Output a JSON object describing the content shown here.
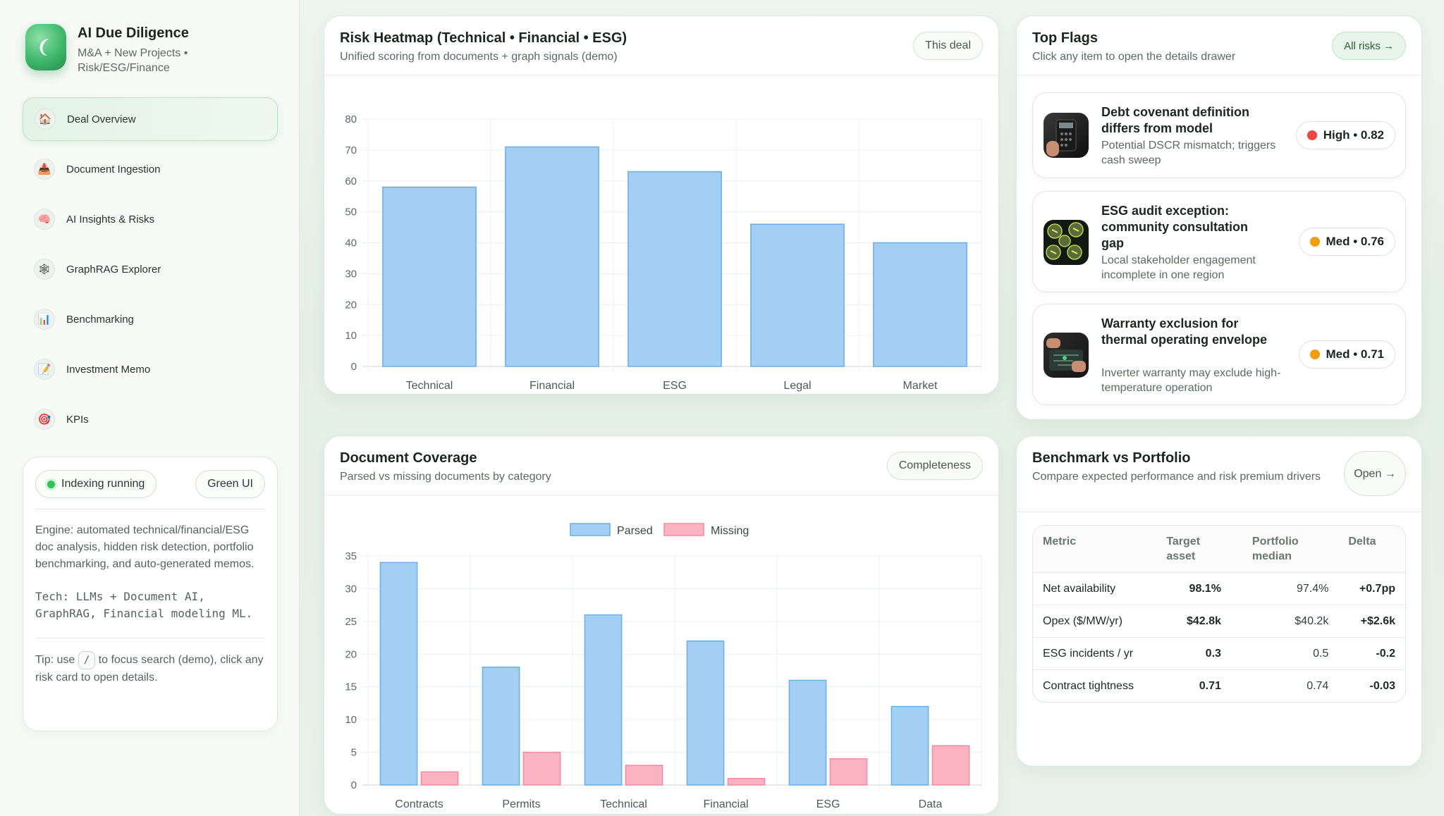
{
  "brand": {
    "title": "AI Due Diligence",
    "subtitle": "M&A + New Projects • Risk/ESG/Finance"
  },
  "nav": [
    {
      "label": "Deal Overview",
      "icon": "house-icon",
      "glyph": "🏠",
      "active": true
    },
    {
      "label": "Document Ingestion",
      "icon": "inbox-tray-icon",
      "glyph": "📥",
      "active": false
    },
    {
      "label": "AI Insights & Risks",
      "icon": "brain-icon",
      "glyph": "🧠",
      "active": false
    },
    {
      "label": "GraphRAG Explorer",
      "icon": "graph-network-icon",
      "glyph": "🕸",
      "active": false
    },
    {
      "label": "Benchmarking",
      "icon": "bar-chart-icon",
      "glyph": "📊",
      "active": false
    },
    {
      "label": "Investment Memo",
      "icon": "memo-icon",
      "glyph": "📝",
      "active": false
    },
    {
      "label": "KPIs",
      "icon": "target-icon",
      "glyph": "🎯",
      "active": false
    }
  ],
  "status": {
    "indexing": "Indexing running",
    "theme": "Green UI",
    "engine": "Engine: automated technical/financial/ESG doc analysis, hidden risk detection, portfolio benchmarking, and auto-generated memos.",
    "tech": "Tech: LLMs + Document AI, GraphRAG, Financial modeling ML.",
    "tip_prefix": "Tip: use",
    "tip_key": "/",
    "tip_suffix": "to focus search (demo), click any risk card to open details."
  },
  "heatmap": {
    "title": "Risk Heatmap (Technical • Financial • ESG)",
    "subtitle": "Unified scoring from documents + graph signals (demo)",
    "button": "This deal"
  },
  "coverage": {
    "title": "Document Coverage",
    "subtitle": "Parsed vs missing documents by category",
    "button": "Completeness"
  },
  "flags": {
    "title": "Top Flags",
    "subtitle": "Click any item to open the details drawer",
    "button": "All risks →",
    "items": [
      {
        "title": "Debt covenant definition differs from model",
        "desc": "Potential DSCR mismatch; triggers cash sweep",
        "badge": "High • 0.82",
        "color": "#ef4444"
      },
      {
        "title": "ESG audit exception: community consultation gap",
        "desc": "Local stakeholder engagement incomplete in one region",
        "badge": "Med • 0.76",
        "color": "#f59e0b"
      },
      {
        "title": "Warranty exclusion for thermal operating envelope",
        "desc": "Inverter warranty may exclude high-temperature operation",
        "badge": "Med • 0.71",
        "color": "#f59e0b"
      }
    ]
  },
  "benchmark": {
    "title": "Benchmark vs Portfolio",
    "subtitle": "Compare expected performance and risk premium drivers",
    "button": "Open →",
    "headers": [
      "Metric",
      "Target asset",
      "Portfolio median",
      "Delta"
    ],
    "rows": [
      [
        "Net availability",
        "98.1%",
        "97.4%",
        "+0.7pp"
      ],
      [
        "Opex ($/MW/yr)",
        "$42.8k",
        "$40.2k",
        "+$2.6k"
      ],
      [
        "ESG incidents / yr",
        "0.3",
        "0.5",
        "-0.2"
      ],
      [
        "Contract tightness",
        "0.71",
        "0.74",
        "-0.03"
      ]
    ]
  },
  "chart_data": [
    {
      "type": "bar",
      "categories": [
        "Technical",
        "Financial",
        "ESG",
        "Legal",
        "Market"
      ],
      "values": [
        58,
        71,
        63,
        46,
        40
      ],
      "ylim": [
        0,
        80
      ],
      "yticks": [
        0,
        10,
        20,
        30,
        40,
        50,
        60,
        70,
        80
      ],
      "colors": {
        "fill": "#a3cff5",
        "stroke": "#68aee8"
      },
      "grid": true
    },
    {
      "type": "bar",
      "categories": [
        "Contracts",
        "Permits",
        "Technical",
        "Financial",
        "ESG",
        "Data"
      ],
      "series": [
        {
          "name": "Parsed",
          "values": [
            34,
            18,
            26,
            22,
            16,
            12
          ],
          "fill": "#a3cff5",
          "stroke": "#68aee8"
        },
        {
          "name": "Missing",
          "values": [
            2,
            5,
            3,
            1,
            4,
            6
          ],
          "fill": "#fbb3c1",
          "stroke": "#f48aa0"
        }
      ],
      "ylim": [
        0,
        35
      ],
      "yticks": [
        0,
        5,
        10,
        15,
        20,
        25,
        30,
        35
      ],
      "legend": "top-center",
      "grid": true
    }
  ]
}
